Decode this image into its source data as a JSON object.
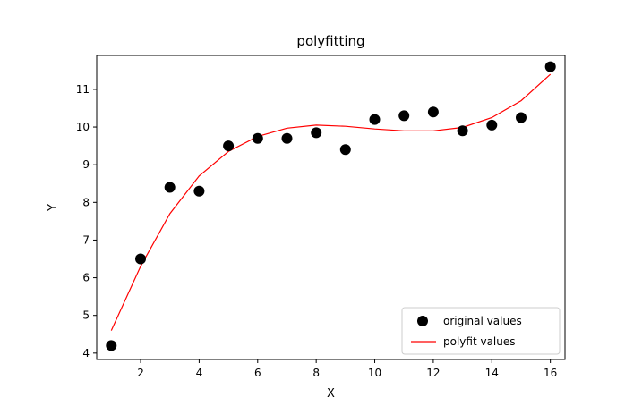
{
  "chart_data": {
    "type": "scatter",
    "title": "polyfitting",
    "xlabel": "X",
    "ylabel": "Y",
    "xlim": [
      0.5,
      16.5
    ],
    "ylim": [
      3.83,
      11.9
    ],
    "xticks": [
      2,
      4,
      6,
      8,
      10,
      12,
      14,
      16
    ],
    "yticks": [
      4,
      5,
      6,
      7,
      8,
      9,
      10,
      11
    ],
    "grid": false,
    "legend_position": "lower-right",
    "series": [
      {
        "name": "original values",
        "type": "scatter",
        "color": "#000000",
        "x": [
          1,
          2,
          3,
          4,
          5,
          6,
          7,
          8,
          9,
          10,
          11,
          12,
          13,
          14,
          15,
          16
        ],
        "y": [
          4.2,
          6.5,
          8.4,
          8.3,
          9.5,
          9.7,
          9.7,
          9.85,
          9.4,
          10.2,
          10.3,
          10.4,
          9.9,
          10.05,
          10.25,
          11.6
        ]
      },
      {
        "name": "polyfit values",
        "type": "line",
        "color": "#ff0000",
        "x": [
          1,
          2,
          3,
          4,
          5,
          6,
          7,
          8,
          9,
          10,
          11,
          12,
          13,
          14,
          15,
          16
        ],
        "y": [
          4.6,
          6.3,
          7.7,
          8.7,
          9.35,
          9.75,
          9.97,
          10.05,
          10.02,
          9.95,
          9.9,
          9.9,
          9.99,
          10.25,
          10.7,
          11.4
        ]
      }
    ]
  }
}
